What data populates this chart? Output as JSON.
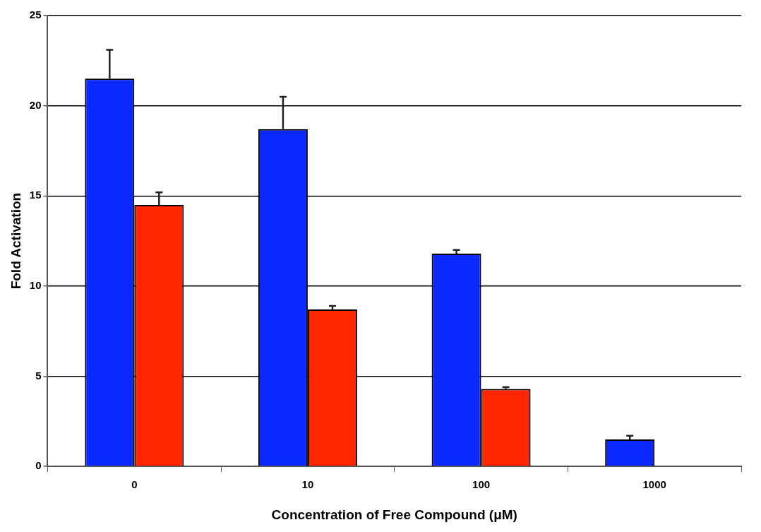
{
  "chart_data": {
    "type": "bar",
    "xlabel": "Concentration of Free Compound (μM)",
    "ylabel": "Fold Activation",
    "categories": [
      "0",
      "10",
      "100",
      "1000"
    ],
    "series": [
      {
        "color": "#0a28ff",
        "values": [
          21.5,
          18.7,
          11.8,
          1.5
        ],
        "errors": [
          [
            21.5,
            23.1
          ],
          [
            18.7,
            20.5
          ],
          [
            11.8,
            12.0
          ],
          [
            1.5,
            1.7
          ]
        ]
      },
      {
        "color": "#ff2600",
        "values": [
          14.5,
          8.7,
          4.3,
          null
        ],
        "errors": [
          [
            14.5,
            15.2
          ],
          [
            8.7,
            8.9
          ],
          [
            4.3,
            4.4
          ],
          null
        ]
      }
    ],
    "ylim": [
      0,
      25
    ],
    "yticks": [
      0,
      5,
      10,
      15,
      20,
      25
    ],
    "grid": "y",
    "legend": false
  }
}
